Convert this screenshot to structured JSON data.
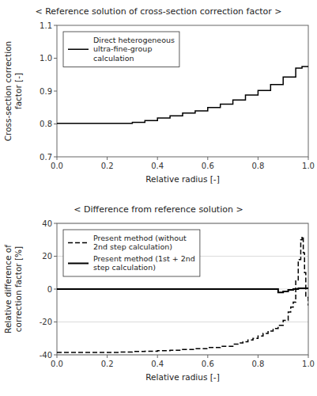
{
  "chart_data": [
    {
      "type": "line",
      "title": "< Reference solution of cross-section correction factor >",
      "xlabel": "Relative radius [-]",
      "ylabel": "Cross-section correction\nfactor [-]",
      "xlim": [
        0.0,
        1.0
      ],
      "ylim": [
        0.7,
        1.1
      ],
      "xticks": [
        {
          "value": 0.0,
          "label": "0.0"
        },
        0.2,
        0.4,
        0.6,
        0.8,
        {
          "value": 1.0,
          "label": "1.0"
        }
      ],
      "yticks": [
        0.7,
        0.8,
        0.9,
        {
          "value": 1.0,
          "label": "1.0"
        },
        1.1
      ],
      "legend": "upper-left",
      "x": [
        0.0,
        0.3,
        0.3,
        0.35,
        0.35,
        0.4,
        0.4,
        0.45,
        0.45,
        0.5,
        0.5,
        0.55,
        0.55,
        0.6,
        0.6,
        0.65,
        0.65,
        0.7,
        0.7,
        0.75,
        0.75,
        0.8,
        0.8,
        0.85,
        0.85,
        0.9,
        0.9,
        0.95,
        0.95,
        0.975,
        0.975,
        1.0
      ],
      "series": [
        {
          "name": "Direct heterogeneous\nultra-fine-group\ncalculation",
          "color": "#000000",
          "line_style": "solid",
          "values": [
            0.802,
            0.802,
            0.805,
            0.805,
            0.81,
            0.81,
            0.818,
            0.818,
            0.825,
            0.825,
            0.833,
            0.833,
            0.84,
            0.84,
            0.85,
            0.85,
            0.86,
            0.86,
            0.873,
            0.873,
            0.888,
            0.888,
            0.902,
            0.902,
            0.92,
            0.92,
            0.943,
            0.943,
            0.97,
            0.97,
            0.975,
            0.975
          ]
        }
      ]
    },
    {
      "type": "step",
      "title": "< Difference from reference solution >",
      "xlabel": "Relative radius [-]",
      "ylabel": "Relative difference of\ncorrection factor [%]",
      "xlim": [
        0.0,
        1.0
      ],
      "ylim": [
        -40,
        40
      ],
      "xticks": [
        {
          "value": 0.0,
          "label": "0.0"
        },
        0.2,
        0.4,
        0.6,
        0.8,
        {
          "value": 1.0,
          "label": "1.0"
        }
      ],
      "yticks": [
        -40,
        -20,
        0,
        20,
        40
      ],
      "grid": true,
      "legend": "upper-left",
      "series": [
        {
          "name": "Present method (without\n2nd step calculation)",
          "color": "#000000",
          "line_style": "dashed",
          "x": [
            0.0,
            0.05,
            0.1,
            0.15,
            0.2,
            0.25,
            0.3,
            0.35,
            0.4,
            0.45,
            0.5,
            0.55,
            0.6,
            0.65,
            0.7,
            0.72,
            0.74,
            0.76,
            0.78,
            0.8,
            0.82,
            0.84,
            0.86,
            0.88,
            0.9,
            0.92,
            0.93,
            0.94,
            0.95,
            0.96,
            0.97,
            0.975,
            0.98,
            0.985,
            0.99,
            1.0
          ],
          "values": [
            -38.5,
            -38.5,
            -38.5,
            -38.5,
            -38.5,
            -38.3,
            -38.0,
            -37.8,
            -37.5,
            -37.2,
            -36.8,
            -36.3,
            -35.6,
            -34.8,
            -33.5,
            -32.8,
            -32.0,
            -31.0,
            -30.0,
            -28.5,
            -27.0,
            -25.5,
            -24.0,
            -22.0,
            -19.0,
            -14.0,
            -11.0,
            -8.0,
            5.0,
            18.0,
            30.0,
            32.0,
            22.0,
            10.0,
            -5.0,
            -10.0
          ]
        },
        {
          "name": "Present method (1st + 2nd\nstep calculation)",
          "color": "#000000",
          "line_style": "solid",
          "x": [
            0.0,
            0.88,
            0.88,
            0.9,
            0.9,
            0.92,
            0.92,
            0.94,
            0.94,
            0.96,
            0.96,
            1.0
          ],
          "values": [
            0.0,
            0.0,
            -2.0,
            -2.0,
            -1.5,
            -1.5,
            -0.5,
            -0.5,
            0.0,
            0.0,
            0.5,
            0.5
          ]
        }
      ]
    }
  ]
}
